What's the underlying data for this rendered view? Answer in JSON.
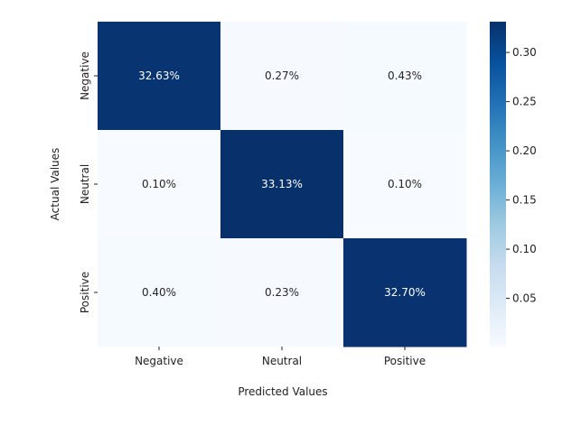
{
  "chart_data": {
    "type": "heatmap",
    "title": "",
    "xlabel": "Predicted Values",
    "ylabel": "Actual Values",
    "x_categories": [
      "Negative",
      "Neutral",
      "Positive"
    ],
    "y_categories": [
      "Negative",
      "Neutral",
      "Positive"
    ],
    "values": [
      [
        32.63,
        0.27,
        0.43
      ],
      [
        0.1,
        33.13,
        0.1
      ],
      [
        0.4,
        0.23,
        32.7
      ]
    ],
    "annotations": [
      [
        "32.63%",
        "0.27%",
        "0.43%"
      ],
      [
        "0.10%",
        "33.13%",
        "0.10%"
      ],
      [
        "0.40%",
        "0.23%",
        "32.70%"
      ]
    ],
    "colormap": "Blues",
    "colorbar": {
      "range": [
        0.001,
        0.3313
      ],
      "ticks": [
        0.05,
        0.1,
        0.15,
        0.2,
        0.25,
        0.3
      ],
      "tick_labels": [
        "0.05",
        "0.10",
        "0.15",
        "0.20",
        "0.25",
        "0.30"
      ]
    },
    "colors": {
      "low": "#f7fbff",
      "high": "#08306b"
    }
  }
}
